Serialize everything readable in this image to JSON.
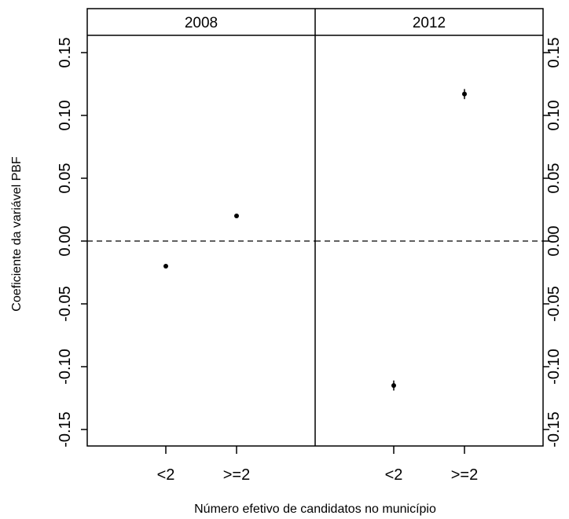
{
  "chart_data": {
    "type": "scatter",
    "title": "",
    "xlabel": "Número efetivo de candidatos no município",
    "ylabel": "Coeficiente da variável PBF",
    "categories": [
      "<2",
      ">=2"
    ],
    "ylim": [
      -0.16,
      0.16
    ],
    "yticks": [
      "-0.15",
      "-0.10",
      "-0.05",
      "0.00",
      "0.05",
      "0.10",
      "0.15"
    ],
    "reference_line": 0,
    "grid": false,
    "panels": [
      {
        "label": "2008",
        "points": [
          {
            "category": "<2",
            "y": -0.02,
            "err": 0.001
          },
          {
            "category": ">=2",
            "y": 0.02,
            "err": 0.001
          }
        ]
      },
      {
        "label": "2012",
        "points": [
          {
            "category": "<2",
            "y": -0.115,
            "err": 0.004
          },
          {
            "category": ">=2",
            "y": 0.117,
            "err": 0.004
          }
        ]
      }
    ]
  }
}
